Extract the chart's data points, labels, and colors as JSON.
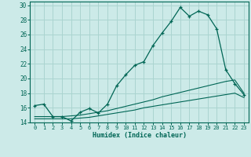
{
  "xlabel": "Humidex (Indice chaleur)",
  "background_color": "#cceae8",
  "grid_color": "#aad4d0",
  "line_color": "#006655",
  "xlim": [
    -0.5,
    23.5
  ],
  "ylim": [
    14,
    30.5
  ],
  "xticks": [
    0,
    1,
    2,
    3,
    4,
    5,
    6,
    7,
    8,
    9,
    10,
    11,
    12,
    13,
    14,
    15,
    16,
    17,
    18,
    19,
    20,
    21,
    22,
    23
  ],
  "yticks": [
    14,
    16,
    18,
    20,
    22,
    24,
    26,
    28,
    30
  ],
  "curve1_x": [
    0,
    1,
    2,
    3,
    4,
    5,
    6,
    7,
    8,
    9,
    10,
    11,
    12,
    13,
    14,
    15,
    16,
    17,
    18,
    19,
    20,
    21,
    22,
    23
  ],
  "curve1_y": [
    16.3,
    16.5,
    14.8,
    14.8,
    14.2,
    15.4,
    15.9,
    15.3,
    16.5,
    19.0,
    20.5,
    21.8,
    22.3,
    24.5,
    26.2,
    27.8,
    29.7,
    28.5,
    29.2,
    28.7,
    26.8,
    21.2,
    19.3,
    17.8
  ],
  "curve2_x": [
    0,
    1,
    2,
    3,
    4,
    5,
    6,
    7,
    8,
    9,
    10,
    11,
    12,
    13,
    14,
    15,
    16,
    17,
    18,
    19,
    20,
    21,
    22,
    23
  ],
  "curve2_y": [
    14.8,
    14.8,
    14.8,
    14.8,
    14.9,
    15.0,
    15.2,
    15.4,
    15.6,
    15.9,
    16.2,
    16.5,
    16.8,
    17.1,
    17.5,
    17.8,
    18.1,
    18.4,
    18.7,
    19.0,
    19.3,
    19.6,
    19.8,
    18.0
  ],
  "curve3_x": [
    0,
    1,
    2,
    3,
    4,
    5,
    6,
    7,
    8,
    9,
    10,
    11,
    12,
    13,
    14,
    15,
    16,
    17,
    18,
    19,
    20,
    21,
    22,
    23
  ],
  "curve3_y": [
    14.5,
    14.5,
    14.5,
    14.5,
    14.5,
    14.6,
    14.7,
    14.9,
    15.1,
    15.3,
    15.5,
    15.7,
    16.0,
    16.2,
    16.4,
    16.6,
    16.8,
    17.0,
    17.2,
    17.4,
    17.6,
    17.8,
    18.0,
    17.4
  ]
}
